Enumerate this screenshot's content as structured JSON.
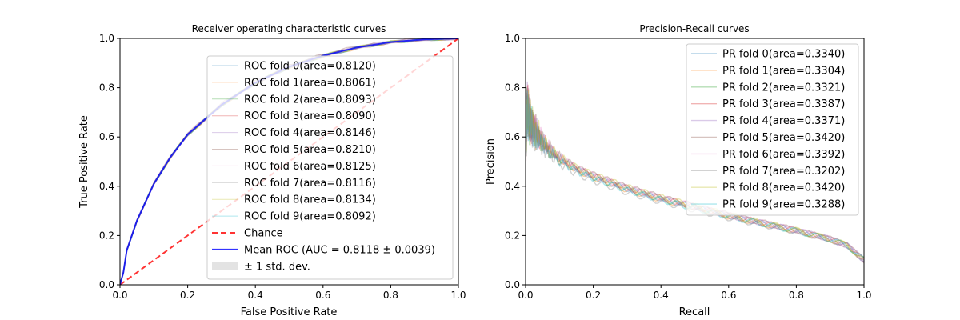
{
  "chart_data": [
    {
      "type": "line",
      "title": "Receiver operating characteristic curves",
      "xlabel": "False Positive Rate",
      "ylabel": "True Positive Rate",
      "xlim": [
        0,
        1
      ],
      "ylim": [
        0,
        1
      ],
      "xticks": [
        "0.0",
        "0.2",
        "0.4",
        "0.6",
        "0.8",
        "1.0"
      ],
      "yticks": [
        "0.0",
        "0.2",
        "0.4",
        "0.6",
        "0.8",
        "1.0"
      ],
      "grid": false,
      "legend_position": "center-right",
      "series": [
        {
          "name": "ROC fold 0(area=0.8120)",
          "color": "#1f77b4",
          "auc": 0.812
        },
        {
          "name": "ROC fold 1(area=0.8061)",
          "color": "#ff7f0e",
          "auc": 0.8061
        },
        {
          "name": "ROC fold 2(area=0.8093)",
          "color": "#2ca02c",
          "auc": 0.8093
        },
        {
          "name": "ROC fold 3(area=0.8090)",
          "color": "#d62728",
          "auc": 0.809
        },
        {
          "name": "ROC fold 4(area=0.8146)",
          "color": "#9467bd",
          "auc": 0.8146
        },
        {
          "name": "ROC fold 5(area=0.8210)",
          "color": "#8c564b",
          "auc": 0.821
        },
        {
          "name": "ROC fold 6(area=0.8125)",
          "color": "#e377c2",
          "auc": 0.8125
        },
        {
          "name": "ROC fold 7(area=0.8116)",
          "color": "#7f7f7f",
          "auc": 0.8116
        },
        {
          "name": "ROC fold 8(area=0.8134)",
          "color": "#bcbd22",
          "auc": 0.8134
        },
        {
          "name": "ROC fold 9(area=0.8092)",
          "color": "#17becf",
          "auc": 0.8092
        }
      ],
      "chance": {
        "name": "Chance",
        "color": "#ff0000",
        "x": [
          0,
          1
        ],
        "y": [
          0,
          1
        ]
      },
      "mean": {
        "name": "Mean ROC (AUC = 0.8118 ± 0.0039)",
        "color": "#0000ff",
        "x": [
          0,
          0.01,
          0.02,
          0.05,
          0.1,
          0.15,
          0.2,
          0.3,
          0.4,
          0.5,
          0.6,
          0.7,
          0.8,
          0.9,
          1.0
        ],
        "y": [
          0,
          0.05,
          0.14,
          0.26,
          0.41,
          0.52,
          0.61,
          0.73,
          0.82,
          0.885,
          0.93,
          0.963,
          0.985,
          0.996,
          1.0
        ]
      },
      "std_band": {
        "name": "± 1 std. dev.",
        "color": "#c8c8c8"
      }
    },
    {
      "type": "line",
      "title": "Precision-Recall curves",
      "xlabel": "Recall",
      "ylabel": "Precision",
      "xlim": [
        0,
        1
      ],
      "ylim": [
        0,
        1
      ],
      "xticks": [
        "0.0",
        "0.2",
        "0.4",
        "0.6",
        "0.8",
        "1.0"
      ],
      "yticks": [
        "0.0",
        "0.2",
        "0.4",
        "0.6",
        "0.8",
        "1.0"
      ],
      "grid": false,
      "legend_position": "upper-right",
      "series": [
        {
          "name": "PR fold 0(area=0.3340)",
          "color": "#1f77b4",
          "auc": 0.334
        },
        {
          "name": "PR fold 1(area=0.3304)",
          "color": "#ff7f0e",
          "auc": 0.3304
        },
        {
          "name": "PR fold 2(area=0.3321)",
          "color": "#2ca02c",
          "auc": 0.3321
        },
        {
          "name": "PR fold 3(area=0.3387)",
          "color": "#d62728",
          "auc": 0.3387
        },
        {
          "name": "PR fold 4(area=0.3371)",
          "color": "#9467bd",
          "auc": 0.3371
        },
        {
          "name": "PR fold 5(area=0.3420)",
          "color": "#8c564b",
          "auc": 0.342
        },
        {
          "name": "PR fold 6(area=0.3392)",
          "color": "#e377c2",
          "auc": 0.3392
        },
        {
          "name": "PR fold 7(area=0.3202)",
          "color": "#7f7f7f",
          "auc": 0.3202
        },
        {
          "name": "PR fold 8(area=0.3420)",
          "color": "#bcbd22",
          "auc": 0.342
        },
        {
          "name": "PR fold 9(area=0.3288)",
          "color": "#17becf",
          "auc": 0.3288
        }
      ],
      "typical_curve": {
        "x": [
          0,
          0.005,
          0.01,
          0.02,
          0.04,
          0.06,
          0.1,
          0.15,
          0.2,
          0.3,
          0.4,
          0.5,
          0.6,
          0.7,
          0.8,
          0.9,
          0.95,
          1.0
        ],
        "y": [
          0.6,
          0.72,
          0.68,
          0.64,
          0.6,
          0.56,
          0.51,
          0.47,
          0.44,
          0.39,
          0.35,
          0.315,
          0.28,
          0.25,
          0.22,
          0.185,
          0.16,
          0.1
        ]
      }
    }
  ]
}
